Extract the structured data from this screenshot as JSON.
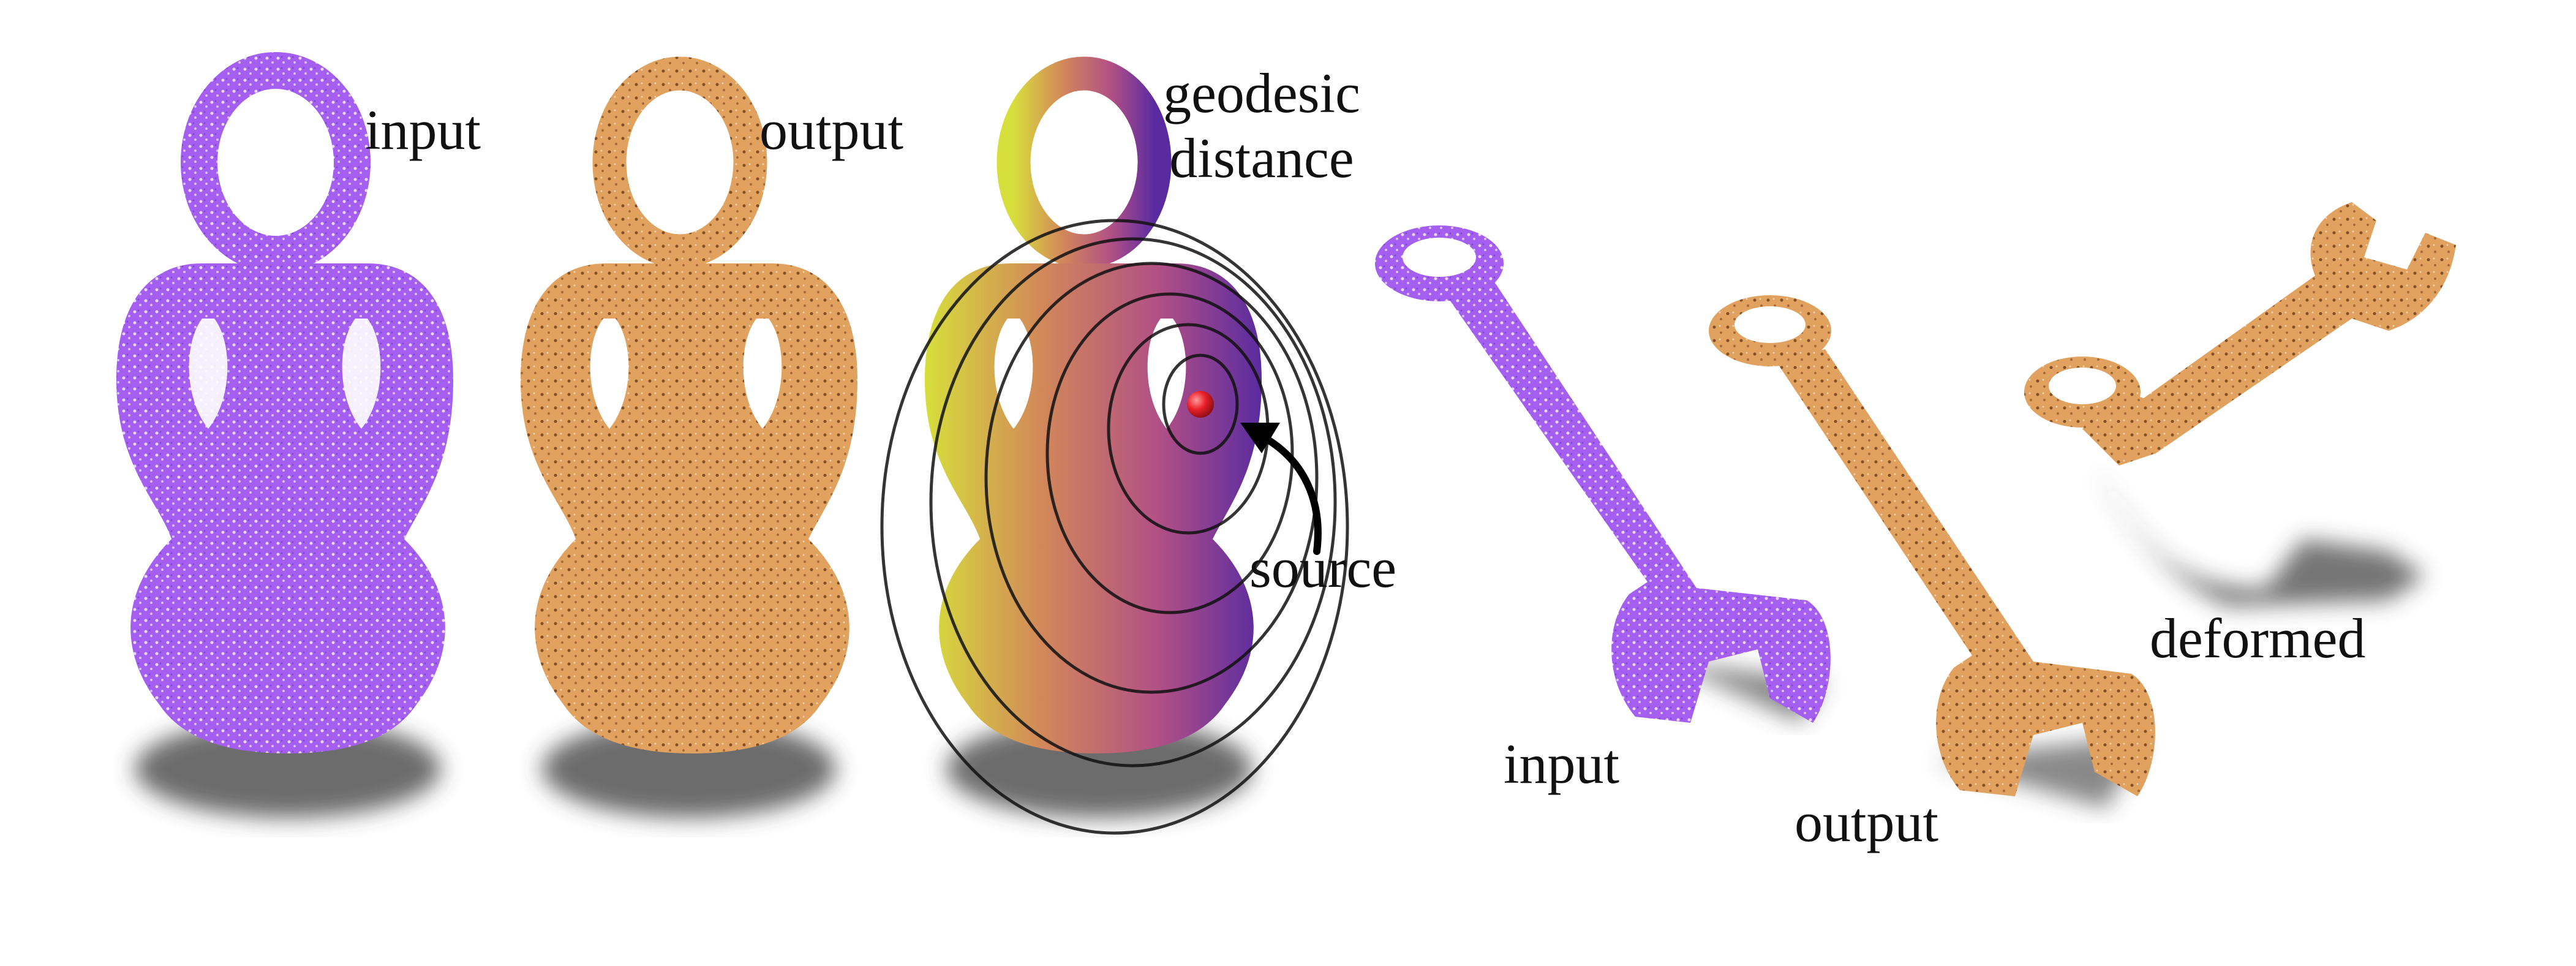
{
  "figure": {
    "vase_panel": {
      "input_label": "input",
      "output_label": "output",
      "geodesic_label_line1": "geodesic",
      "geodesic_label_line2": "distance",
      "source_label": "source"
    },
    "wrench_panel": {
      "input_label": "input",
      "output_label": "output",
      "deformed_label": "deformed"
    }
  },
  "colors": {
    "input_points": "#a45ef0",
    "output_mesh": "#e0a25e",
    "source_point": "#e8202a",
    "shadow": "#3a3a3a",
    "contour_lines": "#111111"
  },
  "icons": [
    "vase-input-pointcloud",
    "vase-output-mesh",
    "vase-geodesic-field",
    "source-point-icon",
    "source-arrow-icon",
    "wrench-input-pointcloud",
    "wrench-output-mesh",
    "wrench-deformed-mesh"
  ]
}
